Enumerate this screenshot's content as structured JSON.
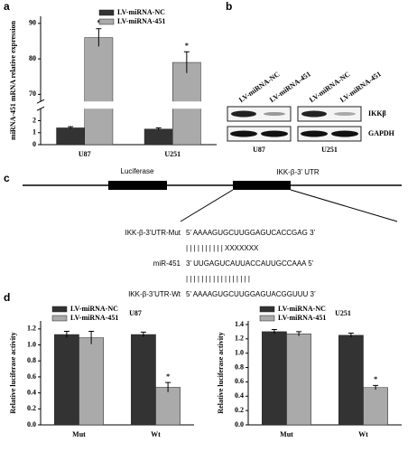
{
  "panel_labels": [
    "a",
    "b",
    "c",
    "d"
  ],
  "blot": {
    "lanes": [
      "LV-miRNA-NC",
      "LV-miRNA-451",
      "LV-miRNA-NC",
      "LV-miRNA-451"
    ],
    "proteins": [
      "IKKβ",
      "GAPDH"
    ],
    "cells": [
      "U87",
      "U251"
    ]
  },
  "construct": {
    "luciferase": "Luciferase",
    "utr": "IKK-β-3’ UTR",
    "rows": [
      {
        "label": "IKK-β-3’UTR-Mut",
        "seq": "5’ AAAAGUGCUUGGAGUCACCGAG 3’"
      },
      {
        "label": "",
        "seq": "| |       | | | | | | | |       XXXXXXX"
      },
      {
        "label": "miR-451",
        "seq": "3’ UUGAGUCAUUACCAUUGCCAAA 5’"
      },
      {
        "label": "",
        "seq": "| |       | | | | | | | |       | | | | | | |"
      },
      {
        "label": "IKK-β-3’UTR-Wt",
        "seq": "5’ AAAAGUGCUUGGAGUACGGUUU 3’"
      }
    ]
  },
  "chart_data": [
    {
      "type": "bar",
      "ylabel": "miRNA-451 mRNA relative expression",
      "categories": [
        "U87",
        "U251"
      ],
      "series": [
        {
          "name": "LV-miRNA-NC",
          "color": "#333333",
          "values": [
            1.4,
            1.3
          ],
          "errors": [
            0.1,
            0.1
          ]
        },
        {
          "name": "LV-miRNA-451",
          "color": "#aaaaaa",
          "values": [
            86,
            79
          ],
          "errors": [
            2.5,
            3
          ]
        }
      ],
      "ylim": [
        0,
        92
      ],
      "axis_break": [
        3,
        68
      ],
      "yticks": [
        0,
        1,
        2,
        70,
        80,
        90
      ],
      "annotations": [
        "*",
        "*"
      ]
    },
    {
      "type": "bar",
      "title": "U87",
      "ylabel": "Relative luciferase activity",
      "categories": [
        "Mut",
        "Wt"
      ],
      "series": [
        {
          "name": "LV-miRNA-NC",
          "color": "#333333",
          "values": [
            1.13,
            1.13
          ],
          "errors": [
            0.04,
            0.03
          ]
        },
        {
          "name": "LV-miRNA-451",
          "color": "#aaaaaa",
          "values": [
            1.09,
            0.47
          ],
          "errors": [
            0.08,
            0.06
          ]
        }
      ],
      "ylim": [
        0,
        1.3
      ],
      "yticks": [
        {
          "value": 0,
          "label": "0.0"
        },
        {
          "value": 0.2,
          "label": "0.2"
        },
        {
          "value": 0.4,
          "label": "0.4"
        },
        {
          "value": 0.6,
          "label": "0.6"
        },
        {
          "value": 0.8,
          "label": "0.8"
        },
        {
          "value": 1,
          "label": "1.0"
        },
        {
          "value": 1.2,
          "label": "1.2"
        }
      ],
      "annotations": [
        "*"
      ]
    },
    {
      "type": "bar",
      "title": "U251",
      "ylabel": "Relative luciferase activity",
      "categories": [
        "Mut",
        "Wt"
      ],
      "series": [
        {
          "name": "LV-miRNA-NC",
          "color": "#333333",
          "values": [
            1.3,
            1.25
          ],
          "errors": [
            0.03,
            0.03
          ]
        },
        {
          "name": "LV-miRNA-451",
          "color": "#aaaaaa",
          "values": [
            1.27,
            0.52
          ],
          "errors": [
            0.03,
            0.03
          ]
        }
      ],
      "ylim": [
        0,
        1.45
      ],
      "yticks": [
        {
          "value": 0,
          "label": "0.0"
        },
        {
          "value": 0.2,
          "label": "0.2"
        },
        {
          "value": 0.4,
          "label": "0.4"
        },
        {
          "value": 0.6,
          "label": "0.6"
        },
        {
          "value": 0.8,
          "label": "0.8"
        },
        {
          "value": 1,
          "label": "1.0"
        },
        {
          "value": 1.2,
          "label": "1.2"
        },
        {
          "value": 1.4,
          "label": "1.4"
        }
      ],
      "annotations": [
        "*"
      ]
    }
  ]
}
